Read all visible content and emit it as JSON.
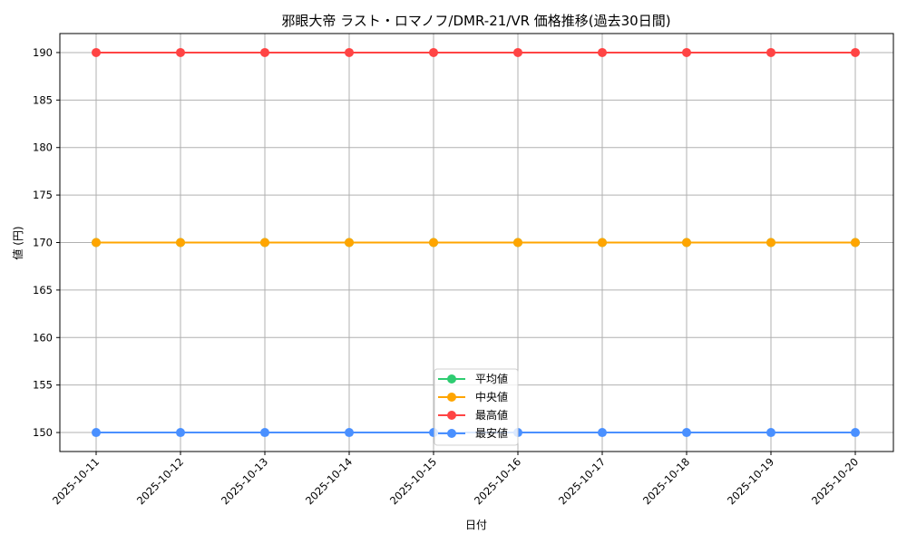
{
  "chart_data": {
    "type": "line",
    "title": "邪眼大帝 ラスト・ロマノフ/DMR-21/VR 価格推移(過去30日間)",
    "xlabel": "日付",
    "ylabel": "値 (円)",
    "categories": [
      "2025-10-11",
      "2025-10-12",
      "2025-10-13",
      "2025-10-14",
      "2025-10-15",
      "2025-10-16",
      "2025-10-17",
      "2025-10-18",
      "2025-10-19",
      "2025-10-20"
    ],
    "yticks": [
      150,
      155,
      160,
      165,
      170,
      175,
      180,
      185,
      190
    ],
    "ylim": [
      148,
      192
    ],
    "grid": true,
    "legend_placement": "bottom-center",
    "series": [
      {
        "name": "平均値",
        "color": "#2ecc71",
        "values": [
          170,
          170,
          170,
          170,
          170,
          170,
          170,
          170,
          170,
          170
        ]
      },
      {
        "name": "中央値",
        "color": "#ffa500",
        "values": [
          170,
          170,
          170,
          170,
          170,
          170,
          170,
          170,
          170,
          170
        ]
      },
      {
        "name": "最高値",
        "color": "#ff4444",
        "values": [
          190,
          190,
          190,
          190,
          190,
          190,
          190,
          190,
          190,
          190
        ]
      },
      {
        "name": "最安値",
        "color": "#4a90ff",
        "values": [
          150,
          150,
          150,
          150,
          150,
          150,
          150,
          150,
          150,
          150
        ]
      }
    ]
  }
}
